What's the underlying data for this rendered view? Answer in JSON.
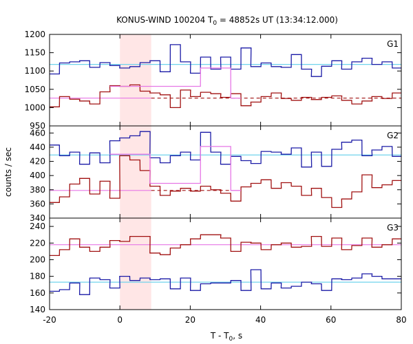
{
  "chart_data": {
    "type": "line",
    "title_main": "KONUS-WIND 100204 T",
    "title_sub": "0",
    "title_rest": " = 48852s UT (13:34:12.000)",
    "xlabel_main": "T - T",
    "xlabel_sub": "0",
    "xlabel_rest": ", s",
    "ylabel": "counts / sec",
    "xlim": [
      -20,
      80
    ],
    "xticks": [
      -20,
      0,
      20,
      40,
      60,
      80
    ],
    "highlight": [
      0,
      8.9
    ],
    "colors": {
      "blue": "#1a1aa6",
      "red": "#a01010",
      "cyan": "#6fd3ec",
      "magenta": "#e676e6",
      "shade": "#ffe6e6"
    },
    "panels": [
      {
        "name": "G1",
        "ylim": [
          950,
          1200
        ],
        "yticks": [
          950,
          1000,
          1050,
          1100,
          1150,
          1200
        ],
        "x": [
          -17.2,
          -14.3,
          -11.4,
          -8.6,
          -5.7,
          -2.8,
          0,
          2.8,
          5.7,
          8.6,
          11.4,
          14.3,
          17.2,
          20.1,
          22.9,
          25.8,
          28.7,
          31.5,
          34.4,
          37.3,
          40.1,
          43,
          45.9,
          48.7,
          51.6,
          54.5,
          57.3,
          60.2,
          63.1,
          65.9,
          68.8,
          71.7,
          74.5,
          77.4,
          80.3
        ],
        "series": [
          {
            "name": "G1 blue",
            "color": "blue",
            "values": [
              1092,
              1122,
              1125,
              1128,
              1110,
              1123,
              1115,
              1108,
              1112,
              1123,
              1128,
              1098,
              1172,
              1125,
              1094,
              1138,
              1105,
              1138,
              1105,
              1163,
              1112,
              1122,
              1112,
              1110,
              1145,
              1105,
              1085,
              1113,
              1128,
              1105,
              1125,
              1135,
              1118,
              1125,
              1108
            ]
          },
          {
            "name": "G1 red",
            "color": "red",
            "values": [
              1002,
              1030,
              1023,
              1018,
              1010,
              1043,
              1060,
              1058,
              1062,
              1045,
              1040,
              1035,
              1000,
              1048,
              1030,
              1042,
              1038,
              1028,
              1038,
              1005,
              1015,
              1030,
              1040,
              1025,
              1020,
              1028,
              1022,
              1028,
              1032,
              1020,
              1010,
              1018,
              1030,
              1025,
              1040
            ]
          },
          {
            "name": "G1 fit",
            "color": "magenta",
            "values": [
              null,
              null,
              null,
              null,
              null,
              null,
              1058,
              1058,
              1058,
              1058,
              1058,
              1058,
              1058,
              1058,
              1058,
              1108,
              1108,
              1108,
              1026,
              null,
              null,
              null,
              null,
              null,
              null,
              null,
              null,
              null,
              null,
              null,
              null,
              null,
              null,
              null,
              null
            ]
          }
        ],
        "bg_solid": [
          {
            "from": -20,
            "to": 0,
            "y": 1026
          },
          {
            "from": 0,
            "to": 8.9,
            "y": 1026
          }
        ],
        "bg_dashed": {
          "from": 8.9,
          "to": 80,
          "y": 1026
        },
        "cyan_level": 1118
      },
      {
        "name": "G2",
        "ylim": [
          340,
          470
        ],
        "yticks": [
          340,
          360,
          380,
          400,
          420,
          440,
          460
        ],
        "x": [
          -17.2,
          -14.3,
          -11.4,
          -8.6,
          -5.7,
          -2.8,
          0,
          2.8,
          5.7,
          8.6,
          11.4,
          14.3,
          17.2,
          20.1,
          22.9,
          25.8,
          28.7,
          31.5,
          34.4,
          37.3,
          40.1,
          43,
          45.9,
          48.7,
          51.6,
          54.5,
          57.3,
          60.2,
          63.1,
          65.9,
          68.8,
          71.7,
          74.5,
          77.4,
          80.3
        ],
        "series": [
          {
            "name": "G2 blue",
            "color": "blue",
            "values": [
              443,
              428,
              433,
              416,
              432,
              418,
              449,
              453,
              456,
              462,
              425,
              418,
              428,
              433,
              422,
              461,
              433,
              416,
              427,
              421,
              417,
              434,
              433,
              430,
              439,
              412,
              433,
              413,
              437,
              447,
              450,
              428,
              436,
              441,
              427
            ]
          },
          {
            "name": "G2 red",
            "color": "red",
            "values": [
              362,
              370,
              388,
              396,
              374,
              392,
              368,
              428,
              422,
              407,
              385,
              372,
              378,
              382,
              378,
              385,
              380,
              375,
              364,
              384,
              389,
              394,
              382,
              390,
              385,
              372,
              382,
              369,
              355,
              367,
              377,
              401,
              383,
              387,
              393
            ]
          },
          {
            "name": "G2 fit",
            "color": "magenta",
            "values": [
              null,
              null,
              null,
              null,
              null,
              null,
              430,
              430,
              430,
              430,
              389,
              389,
              389,
              389,
              389,
              441,
              441,
              441,
              379,
              null,
              null,
              null,
              null,
              null,
              null,
              null,
              null,
              null,
              null,
              null,
              null,
              null,
              null,
              null,
              null
            ]
          }
        ],
        "bg_solid": [
          {
            "from": -20,
            "to": 0,
            "y": 379
          },
          {
            "from": 0,
            "to": 8.9,
            "y": 379
          }
        ],
        "bg_dashed": {
          "from": 8.9,
          "to": 31.5,
          "y": 379
        },
        "cyan_level": 429
      },
      {
        "name": "G3",
        "ylim": [
          140,
          250
        ],
        "yticks": [
          140,
          160,
          180,
          200,
          220,
          240
        ],
        "x": [
          -17.2,
          -14.3,
          -11.4,
          -8.6,
          -5.7,
          -2.8,
          0,
          2.8,
          5.7,
          8.6,
          11.4,
          14.3,
          17.2,
          20.1,
          22.9,
          25.8,
          28.7,
          31.5,
          34.4,
          37.3,
          40.1,
          43,
          45.9,
          48.7,
          51.6,
          54.5,
          57.3,
          60.2,
          63.1,
          65.9,
          68.8,
          71.7,
          74.5,
          77.4,
          80.3
        ],
        "series": [
          {
            "name": "G3 blue",
            "color": "blue",
            "values": [
              162,
              164,
              172,
              158,
              178,
              176,
              166,
              180,
              175,
              178,
              176,
              177,
              165,
              178,
              163,
              171,
              172,
              172,
              175,
              163,
              188,
              165,
              172,
              166,
              168,
              173,
              171,
              163,
              177,
              176,
              178,
              183,
              180,
              177,
              177
            ]
          },
          {
            "name": "G3 red",
            "color": "red",
            "values": [
              205,
              212,
              225,
              215,
              210,
              215,
              223,
              222,
              228,
              228,
              208,
              206,
              214,
              218,
              225,
              230,
              230,
              226,
              210,
              221,
              220,
              212,
              218,
              220,
              215,
              216,
              228,
              216,
              226,
              212,
              217,
              226,
              215,
              218,
              225
            ]
          },
          {
            "name": "G3 fit",
            "color": "magenta",
            "values": [
              null,
              null,
              null,
              null,
              null,
              null,
              null,
              null,
              null,
              null,
              null,
              null,
              null,
              null,
              null,
              null,
              null,
              null,
              null,
              null,
              null,
              null,
              null,
              null,
              null,
              null,
              null,
              null,
              null,
              null,
              null,
              null,
              null,
              null,
              null
            ]
          }
        ],
        "bg_solid": [
          {
            "from": -20,
            "to": 80,
            "y": 218
          }
        ],
        "bg_dashed": null,
        "cyan_level": 173
      }
    ]
  }
}
